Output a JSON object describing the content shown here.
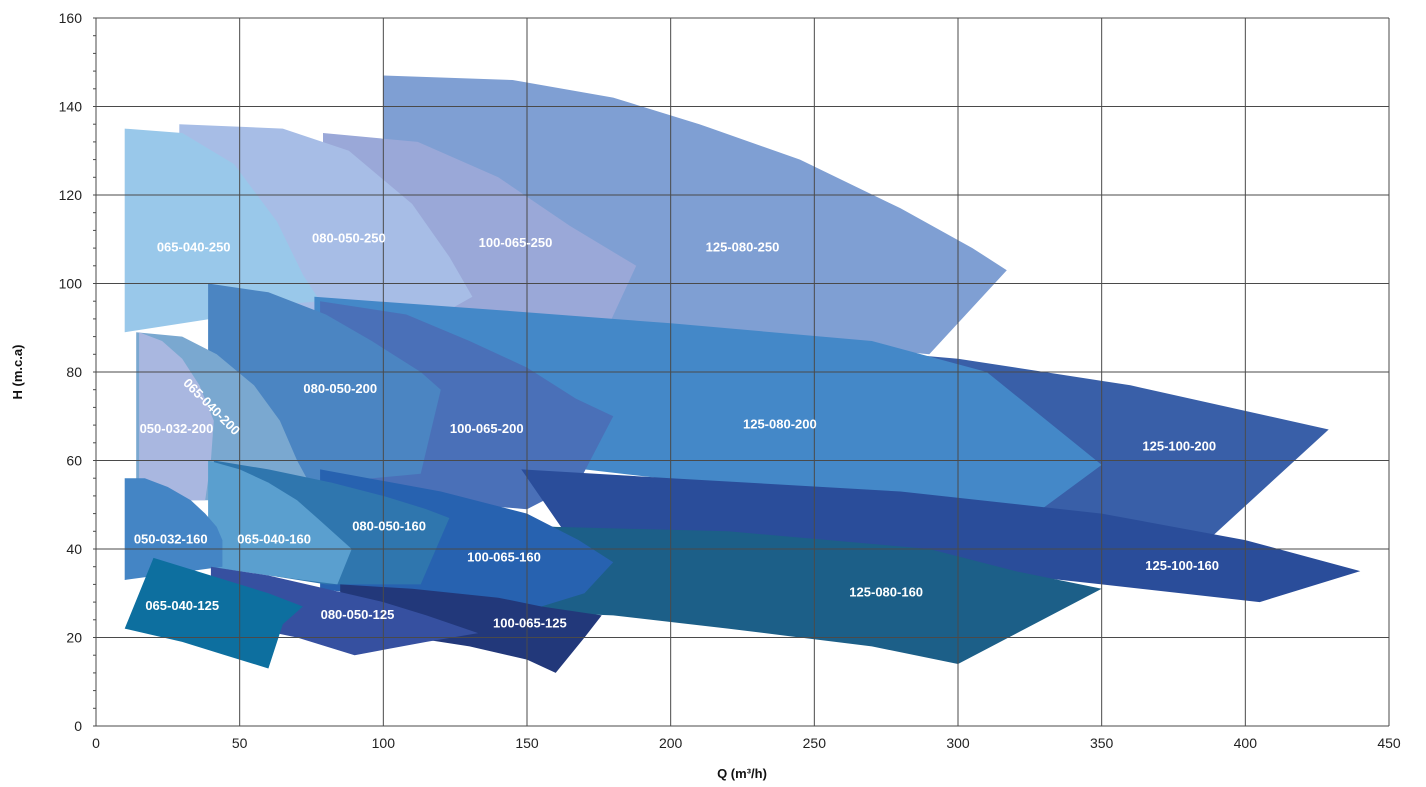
{
  "chart_data": {
    "type": "area",
    "title": "",
    "xlabel": "Q (m³/h)",
    "ylabel": "H (m.c.a)",
    "xlim": [
      0,
      450
    ],
    "ylim": [
      0,
      160
    ],
    "xticks": [
      0,
      50,
      100,
      150,
      200,
      250,
      300,
      350,
      400,
      450
    ],
    "yticks": [
      0,
      20,
      40,
      60,
      80,
      100,
      120,
      140,
      160
    ],
    "grid": true,
    "legend": "none",
    "regions": [
      {
        "name": "125-080-250",
        "color": "#7f9fd3",
        "label_at": [
          225,
          108
        ],
        "points": [
          [
            100,
            147
          ],
          [
            145,
            146
          ],
          [
            180,
            142
          ],
          [
            210,
            136
          ],
          [
            245,
            128
          ],
          [
            280,
            117
          ],
          [
            305,
            108
          ],
          [
            317,
            103
          ],
          [
            290,
            84
          ],
          [
            240,
            87
          ],
          [
            200,
            89
          ],
          [
            150,
            93
          ],
          [
            100,
            93
          ]
        ]
      },
      {
        "name": "100-065-250",
        "color": "#9aa8d8",
        "label_at": [
          146,
          109
        ],
        "points": [
          [
            79,
            134
          ],
          [
            112,
            132
          ],
          [
            140,
            124
          ],
          [
            165,
            113
          ],
          [
            188,
            104
          ],
          [
            178,
            90
          ],
          [
            150,
            92
          ],
          [
            120,
            92
          ],
          [
            79,
            92
          ]
        ]
      },
      {
        "name": "080-050-250",
        "color": "#a7bde6",
        "label_at": [
          88,
          110
        ],
        "points": [
          [
            29,
            136
          ],
          [
            65,
            135
          ],
          [
            88,
            130
          ],
          [
            110,
            118
          ],
          [
            123,
            106
          ],
          [
            131,
            97
          ],
          [
            120,
            93
          ],
          [
            95,
            92
          ],
          [
            29,
            92
          ]
        ]
      },
      {
        "name": "065-040-250",
        "color": "#99c8ea",
        "label_at": [
          34,
          108
        ],
        "points": [
          [
            10,
            135
          ],
          [
            30,
            134
          ],
          [
            48,
            127
          ],
          [
            63,
            114
          ],
          [
            72,
            102
          ],
          [
            78,
            96
          ],
          [
            60,
            95
          ],
          [
            40,
            92
          ],
          [
            10,
            89
          ]
        ]
      },
      {
        "name": "125-100-200",
        "color": "#395fa8",
        "label_at": [
          377,
          63
        ],
        "points": [
          [
            210,
            88
          ],
          [
            300,
            83
          ],
          [
            360,
            77
          ],
          [
            429,
            67
          ],
          [
            387,
            42
          ],
          [
            300,
            47
          ],
          [
            220,
            57
          ]
        ]
      },
      {
        "name": "125-080-200",
        "color": "#4488c8",
        "label_at": [
          238,
          68
        ],
        "points": [
          [
            76,
            97
          ],
          [
            140,
            94
          ],
          [
            200,
            91
          ],
          [
            270,
            87
          ],
          [
            310,
            80
          ],
          [
            350,
            59
          ],
          [
            327,
            48
          ],
          [
            250,
            52
          ],
          [
            170,
            58
          ],
          [
            115,
            63
          ],
          [
            76,
            65
          ]
        ]
      },
      {
        "name": "100-065-200",
        "color": "#4a70b8",
        "label_at": [
          136,
          67
        ],
        "points": [
          [
            78,
            96
          ],
          [
            108,
            93
          ],
          [
            130,
            87
          ],
          [
            150,
            81
          ],
          [
            167,
            74
          ],
          [
            180,
            70
          ],
          [
            168,
            55
          ],
          [
            150,
            49
          ],
          [
            112,
            51
          ],
          [
            78,
            53
          ]
        ]
      },
      {
        "name": "080-050-200",
        "color": "#4b85c2",
        "label_at": [
          85,
          76
        ],
        "points": [
          [
            39,
            100
          ],
          [
            60,
            98
          ],
          [
            80,
            93
          ],
          [
            96,
            87
          ],
          [
            113,
            80
          ],
          [
            120,
            76
          ],
          [
            113,
            57
          ],
          [
            80,
            55
          ],
          [
            39,
            55
          ]
        ]
      },
      {
        "name": "065-040-200",
        "color": "#7aa8d0",
        "label_at": [
          40,
          72
        ],
        "label_rotate": 45,
        "points": [
          [
            14,
            89
          ],
          [
            30,
            88
          ],
          [
            42,
            84
          ],
          [
            55,
            77
          ],
          [
            64,
            69
          ],
          [
            70,
            60
          ],
          [
            75,
            54
          ],
          [
            50,
            51
          ],
          [
            20,
            51
          ],
          [
            14,
            55
          ]
        ]
      },
      {
        "name": "050-032-200",
        "color": "#a9b7e0",
        "label_at": [
          28,
          67
        ],
        "points": [
          [
            15,
            89
          ],
          [
            23,
            87
          ],
          [
            30,
            83
          ],
          [
            36,
            77
          ],
          [
            41,
            69
          ],
          [
            40,
            60
          ],
          [
            38,
            51
          ],
          [
            15,
            51
          ]
        ]
      },
      {
        "name": "125-100-160",
        "color": "#2a4d9a",
        "label_at": [
          378,
          36
        ],
        "points": [
          [
            148,
            58
          ],
          [
            200,
            56
          ],
          [
            280,
            53
          ],
          [
            350,
            48
          ],
          [
            400,
            42
          ],
          [
            440,
            35
          ],
          [
            405,
            28
          ],
          [
            350,
            32
          ],
          [
            280,
            37
          ],
          [
            165,
            42
          ]
        ]
      },
      {
        "name": "125-080-160",
        "color": "#1c5f88",
        "label_at": [
          275,
          30
        ],
        "points": [
          [
            112,
            47
          ],
          [
            160,
            45
          ],
          [
            220,
            44
          ],
          [
            290,
            40
          ],
          [
            320,
            35
          ],
          [
            350,
            31
          ],
          [
            300,
            14
          ],
          [
            270,
            18
          ],
          [
            220,
            22
          ],
          [
            180,
            25
          ],
          [
            140,
            26
          ],
          [
            112,
            30
          ]
        ]
      },
      {
        "name": "100-065-160",
        "color": "#2762b0",
        "label_at": [
          142,
          38
        ],
        "points": [
          [
            78,
            58
          ],
          [
            120,
            53
          ],
          [
            150,
            48
          ],
          [
            168,
            42
          ],
          [
            180,
            37
          ],
          [
            170,
            30
          ],
          [
            155,
            27
          ],
          [
            130,
            28
          ],
          [
            100,
            29
          ],
          [
            78,
            31
          ]
        ]
      },
      {
        "name": "080-050-160",
        "color": "#2f76ae",
        "label_at": [
          102,
          45
        ],
        "points": [
          [
            41,
            60
          ],
          [
            60,
            58
          ],
          [
            82,
            55
          ],
          [
            100,
            52
          ],
          [
            115,
            49
          ],
          [
            123,
            47
          ],
          [
            113,
            32
          ],
          [
            80,
            32
          ],
          [
            41,
            36
          ]
        ]
      },
      {
        "name": "065-040-160",
        "color": "#5a9fcf",
        "label_at": [
          62,
          42
        ],
        "points": [
          [
            39,
            60
          ],
          [
            50,
            58
          ],
          [
            60,
            55
          ],
          [
            70,
            51
          ],
          [
            77,
            47
          ],
          [
            89,
            40
          ],
          [
            84,
            32
          ],
          [
            60,
            34
          ],
          [
            39,
            36
          ]
        ]
      },
      {
        "name": "050-032-160",
        "color": "#4485c5",
        "label_at": [
          26,
          42
        ],
        "points": [
          [
            10,
            56
          ],
          [
            17,
            56
          ],
          [
            25,
            54
          ],
          [
            33,
            51
          ],
          [
            38,
            48
          ],
          [
            42,
            45
          ],
          [
            44,
            42
          ],
          [
            44,
            36
          ],
          [
            10,
            33
          ]
        ]
      },
      {
        "name": "100-065-125",
        "color": "#22387a",
        "label_at": [
          151,
          23
        ],
        "points": [
          [
            85,
            32
          ],
          [
            110,
            31
          ],
          [
            140,
            29
          ],
          [
            155,
            27
          ],
          [
            176,
            25
          ],
          [
            170,
            20
          ],
          [
            160,
            12
          ],
          [
            150,
            15
          ],
          [
            130,
            18
          ],
          [
            110,
            20
          ],
          [
            85,
            22
          ]
        ]
      },
      {
        "name": "080-050-125",
        "color": "#3650a0",
        "label_at": [
          91,
          25
        ],
        "points": [
          [
            40,
            36
          ],
          [
            60,
            34
          ],
          [
            80,
            31
          ],
          [
            100,
            28
          ],
          [
            115,
            25
          ],
          [
            133,
            21
          ],
          [
            115,
            19
          ],
          [
            90,
            16
          ],
          [
            70,
            20
          ],
          [
            40,
            24
          ]
        ]
      },
      {
        "name": "065-040-125",
        "color": "#0d6f9f",
        "label_at": [
          30,
          27
        ],
        "points": [
          [
            20,
            38
          ],
          [
            35,
            35
          ],
          [
            50,
            32
          ],
          [
            60,
            30
          ],
          [
            72,
            27
          ],
          [
            65,
            23
          ],
          [
            60,
            13
          ],
          [
            45,
            16
          ],
          [
            30,
            19
          ],
          [
            10,
            22
          ]
        ]
      }
    ]
  }
}
